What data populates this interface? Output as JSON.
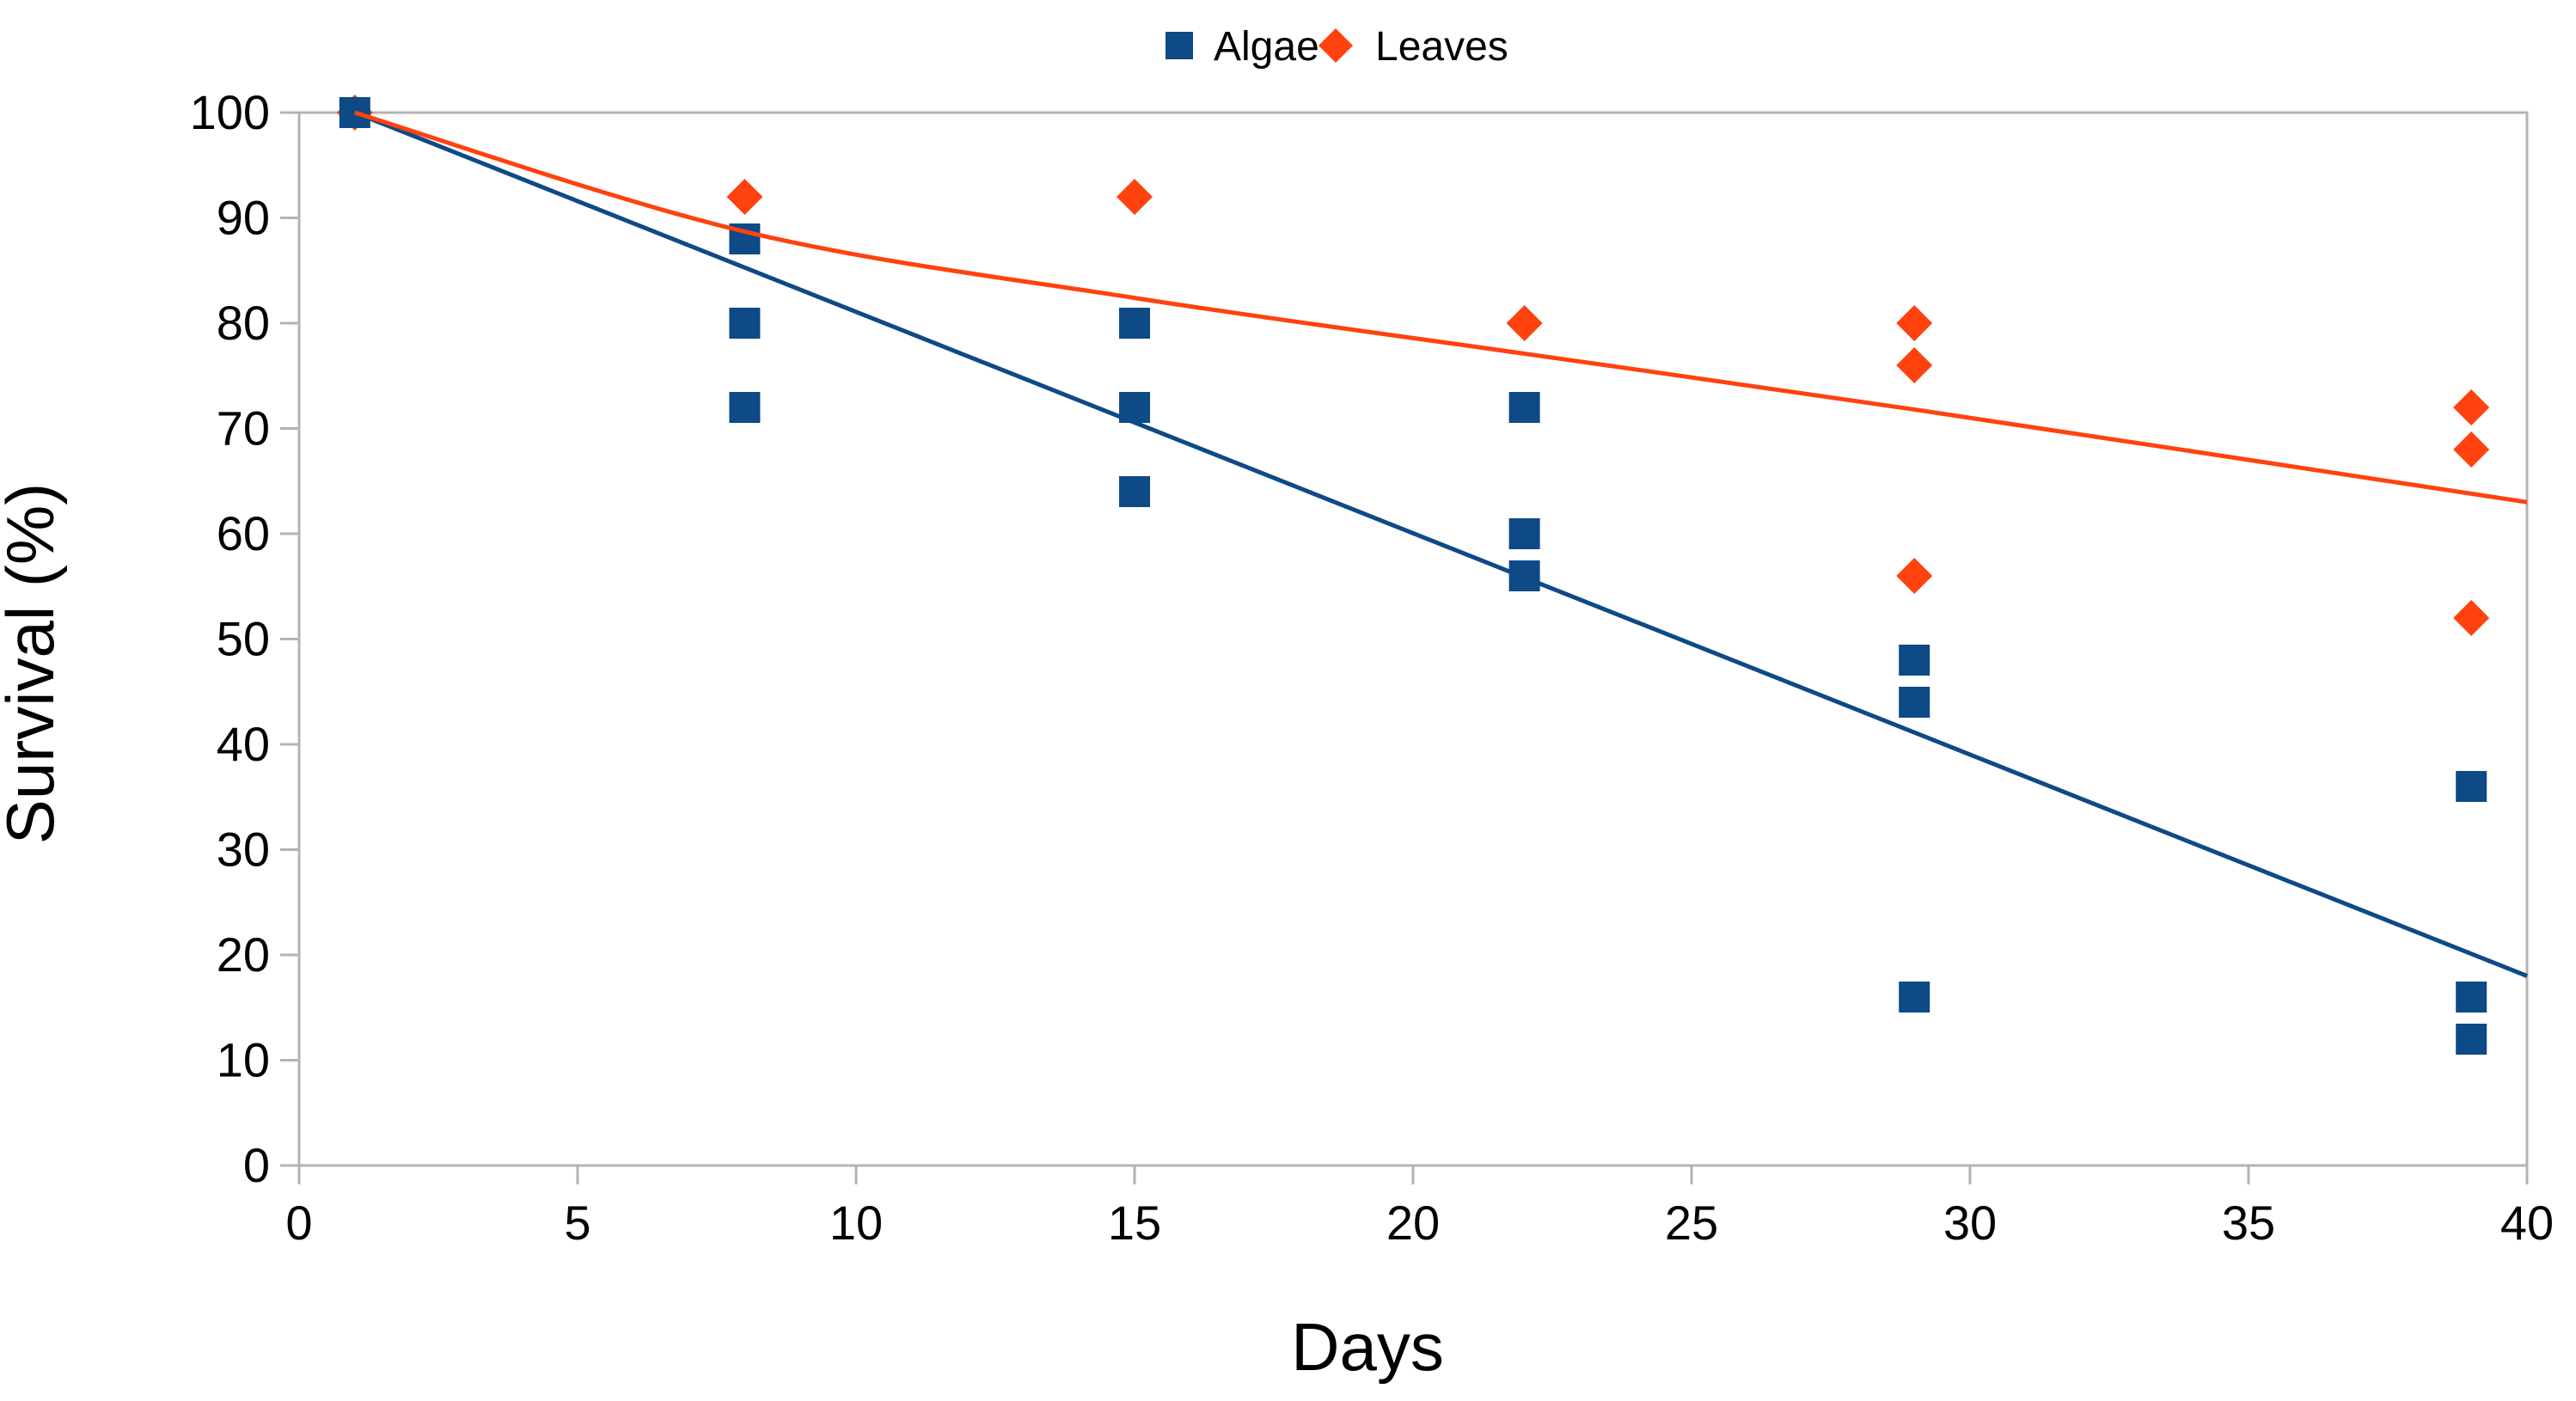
{
  "chart_data": {
    "type": "scatter",
    "title": "",
    "xlabel": "Days",
    "ylabel": "Survival (%)",
    "xlim": [
      0,
      40
    ],
    "ylim": [
      0,
      100
    ],
    "xticks": [
      0,
      5,
      10,
      15,
      20,
      25,
      30,
      35,
      40
    ],
    "yticks": [
      0,
      10,
      20,
      30,
      40,
      50,
      60,
      70,
      80,
      90,
      100
    ],
    "grid": false,
    "legend_position": "top-center",
    "colors": {
      "algae": "#0d4a86",
      "leaves": "#ff420e",
      "axis_frame": "#b3b3b3",
      "text": "#000000",
      "background": "#ffffff"
    },
    "series": [
      {
        "name": "Algae",
        "marker": "square",
        "color": "#0d4a86",
        "points": [
          [
            1,
            100
          ],
          [
            8,
            88
          ],
          [
            8,
            80
          ],
          [
            8,
            72
          ],
          [
            15,
            80
          ],
          [
            15,
            72
          ],
          [
            15,
            64
          ],
          [
            22,
            72
          ],
          [
            22,
            60
          ],
          [
            22,
            56
          ],
          [
            29,
            48
          ],
          [
            29,
            44
          ],
          [
            29,
            16
          ],
          [
            39,
            36
          ],
          [
            39,
            16
          ],
          [
            39,
            12
          ]
        ]
      },
      {
        "name": "Leaves",
        "marker": "diamond",
        "color": "#ff420e",
        "points": [
          [
            1,
            100
          ],
          [
            8,
            92
          ],
          [
            15,
            92
          ],
          [
            22,
            80
          ],
          [
            29,
            80
          ],
          [
            29,
            76
          ],
          [
            29,
            56
          ],
          [
            39,
            72
          ],
          [
            39,
            68
          ],
          [
            39,
            52
          ]
        ]
      }
    ],
    "trendlines": [
      {
        "series": "Algae",
        "shape": "linear",
        "color": "#0d4a86",
        "points": [
          [
            1,
            100
          ],
          [
            40,
            18
          ]
        ]
      },
      {
        "series": "Leaves",
        "shape": "curve",
        "color": "#ff420e",
        "points": [
          [
            1,
            100
          ],
          [
            8,
            88.7
          ],
          [
            15,
            82.4
          ],
          [
            22,
            77.1
          ],
          [
            29,
            71.8
          ],
          [
            40,
            63
          ]
        ]
      }
    ]
  }
}
